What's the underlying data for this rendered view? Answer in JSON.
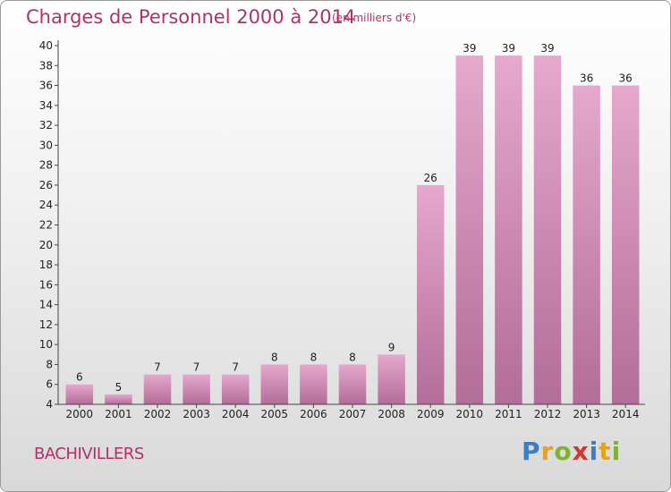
{
  "header": {
    "title": "Charges de Personnel 2000 à 2014",
    "subtitle": "(en milliers d'€)"
  },
  "footer": {
    "commune": "BACHIVILLERS",
    "logo_letters": [
      "P",
      "r",
      "o",
      "x",
      "i",
      "t",
      "i"
    ],
    "logo_colors": [
      "#3a7fc4",
      "#e8a21a",
      "#7ab52c",
      "#d9362b",
      "#3a7fc4",
      "#e8a21a",
      "#7ab52c"
    ]
  },
  "chart_data": {
    "type": "bar",
    "title": "Charges de Personnel 2000 à 2014",
    "subtitle": "(en milliers d'€)",
    "categories": [
      "2000",
      "2001",
      "2002",
      "2003",
      "2004",
      "2005",
      "2006",
      "2007",
      "2008",
      "2009",
      "2010",
      "2011",
      "2012",
      "2013",
      "2014"
    ],
    "values": [
      6,
      5,
      7,
      7,
      7,
      8,
      8,
      8,
      9,
      26,
      39,
      39,
      39,
      36,
      36
    ],
    "ylim": [
      4,
      40
    ],
    "yticks": [
      4,
      6,
      8,
      10,
      12,
      14,
      16,
      18,
      20,
      22,
      24,
      26,
      28,
      30,
      32,
      34,
      36,
      38,
      40
    ],
    "grid": false,
    "bar_color_top": "#e6a8cc",
    "bar_color_bottom": "#b26d99"
  }
}
